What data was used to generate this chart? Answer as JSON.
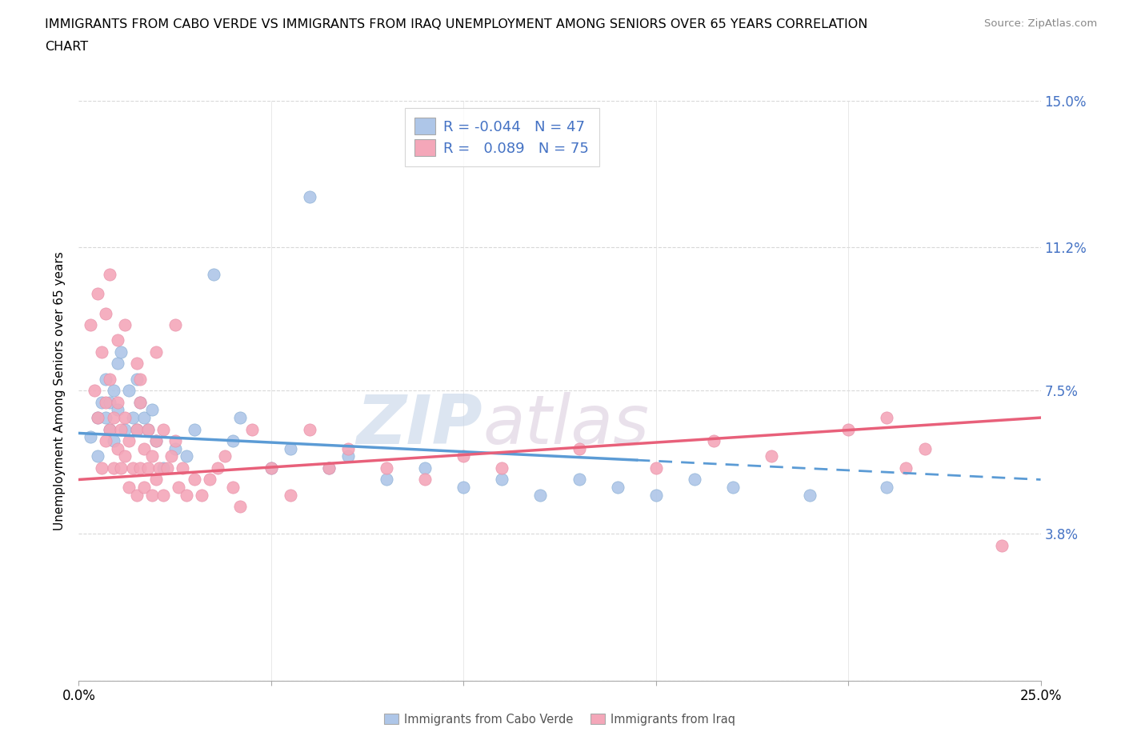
{
  "title_line1": "IMMIGRANTS FROM CABO VERDE VS IMMIGRANTS FROM IRAQ UNEMPLOYMENT AMONG SENIORS OVER 65 YEARS CORRELATION",
  "title_line2": "CHART",
  "source_text": "Source: ZipAtlas.com",
  "ylabel": "Unemployment Among Seniors over 65 years",
  "xlim": [
    0.0,
    0.25
  ],
  "ylim": [
    0.0,
    0.15
  ],
  "yticks": [
    0.0,
    0.038,
    0.075,
    0.112,
    0.15
  ],
  "ytick_labels": [
    "",
    "3.8%",
    "7.5%",
    "11.2%",
    "15.0%"
  ],
  "cabo_verde_color": "#aec6e8",
  "iraq_color": "#f4a7b9",
  "cabo_verde_line_color": "#5b9bd5",
  "iraq_line_color": "#e8607a",
  "cabo_verde_points": [
    [
      0.003,
      0.063
    ],
    [
      0.005,
      0.058
    ],
    [
      0.005,
      0.068
    ],
    [
      0.006,
      0.072
    ],
    [
      0.007,
      0.078
    ],
    [
      0.007,
      0.068
    ],
    [
      0.008,
      0.065
    ],
    [
      0.008,
      0.072
    ],
    [
      0.009,
      0.075
    ],
    [
      0.009,
      0.062
    ],
    [
      0.01,
      0.082
    ],
    [
      0.01,
      0.07
    ],
    [
      0.011,
      0.085
    ],
    [
      0.012,
      0.065
    ],
    [
      0.013,
      0.075
    ],
    [
      0.014,
      0.068
    ],
    [
      0.015,
      0.065
    ],
    [
      0.015,
      0.078
    ],
    [
      0.016,
      0.072
    ],
    [
      0.017,
      0.068
    ],
    [
      0.018,
      0.065
    ],
    [
      0.019,
      0.07
    ],
    [
      0.02,
      0.062
    ],
    [
      0.022,
      0.055
    ],
    [
      0.025,
      0.06
    ],
    [
      0.028,
      0.058
    ],
    [
      0.03,
      0.065
    ],
    [
      0.04,
      0.062
    ],
    [
      0.042,
      0.068
    ],
    [
      0.05,
      0.055
    ],
    [
      0.055,
      0.06
    ],
    [
      0.065,
      0.055
    ],
    [
      0.07,
      0.058
    ],
    [
      0.08,
      0.052
    ],
    [
      0.09,
      0.055
    ],
    [
      0.1,
      0.05
    ],
    [
      0.11,
      0.052
    ],
    [
      0.12,
      0.048
    ],
    [
      0.13,
      0.052
    ],
    [
      0.14,
      0.05
    ],
    [
      0.15,
      0.048
    ],
    [
      0.16,
      0.052
    ],
    [
      0.17,
      0.05
    ],
    [
      0.19,
      0.048
    ],
    [
      0.21,
      0.05
    ],
    [
      0.035,
      0.105
    ],
    [
      0.06,
      0.125
    ]
  ],
  "iraq_points": [
    [
      0.003,
      0.092
    ],
    [
      0.004,
      0.075
    ],
    [
      0.005,
      0.068
    ],
    [
      0.006,
      0.085
    ],
    [
      0.006,
      0.055
    ],
    [
      0.007,
      0.072
    ],
    [
      0.007,
      0.062
    ],
    [
      0.008,
      0.065
    ],
    [
      0.008,
      0.078
    ],
    [
      0.009,
      0.055
    ],
    [
      0.009,
      0.068
    ],
    [
      0.01,
      0.06
    ],
    [
      0.01,
      0.072
    ],
    [
      0.011,
      0.065
    ],
    [
      0.011,
      0.055
    ],
    [
      0.012,
      0.058
    ],
    [
      0.012,
      0.068
    ],
    [
      0.013,
      0.062
    ],
    [
      0.013,
      0.05
    ],
    [
      0.014,
      0.055
    ],
    [
      0.015,
      0.048
    ],
    [
      0.015,
      0.065
    ],
    [
      0.016,
      0.072
    ],
    [
      0.016,
      0.055
    ],
    [
      0.017,
      0.06
    ],
    [
      0.017,
      0.05
    ],
    [
      0.018,
      0.065
    ],
    [
      0.018,
      0.055
    ],
    [
      0.019,
      0.058
    ],
    [
      0.019,
      0.048
    ],
    [
      0.02,
      0.062
    ],
    [
      0.02,
      0.052
    ],
    [
      0.021,
      0.055
    ],
    [
      0.022,
      0.048
    ],
    [
      0.022,
      0.065
    ],
    [
      0.023,
      0.055
    ],
    [
      0.024,
      0.058
    ],
    [
      0.025,
      0.062
    ],
    [
      0.026,
      0.05
    ],
    [
      0.027,
      0.055
    ],
    [
      0.028,
      0.048
    ],
    [
      0.03,
      0.052
    ],
    [
      0.032,
      0.048
    ],
    [
      0.034,
      0.052
    ],
    [
      0.036,
      0.055
    ],
    [
      0.038,
      0.058
    ],
    [
      0.04,
      0.05
    ],
    [
      0.042,
      0.045
    ],
    [
      0.045,
      0.065
    ],
    [
      0.05,
      0.055
    ],
    [
      0.055,
      0.048
    ],
    [
      0.06,
      0.065
    ],
    [
      0.065,
      0.055
    ],
    [
      0.07,
      0.06
    ],
    [
      0.08,
      0.055
    ],
    [
      0.09,
      0.052
    ],
    [
      0.1,
      0.058
    ],
    [
      0.11,
      0.055
    ],
    [
      0.13,
      0.06
    ],
    [
      0.15,
      0.055
    ],
    [
      0.165,
      0.062
    ],
    [
      0.18,
      0.058
    ],
    [
      0.2,
      0.065
    ],
    [
      0.21,
      0.068
    ],
    [
      0.215,
      0.055
    ],
    [
      0.22,
      0.06
    ],
    [
      0.24,
      0.035
    ],
    [
      0.005,
      0.1
    ],
    [
      0.007,
      0.095
    ],
    [
      0.008,
      0.105
    ],
    [
      0.01,
      0.088
    ],
    [
      0.012,
      0.092
    ],
    [
      0.015,
      0.082
    ],
    [
      0.016,
      0.078
    ],
    [
      0.02,
      0.085
    ],
    [
      0.025,
      0.092
    ]
  ],
  "watermark_zip": "ZIP",
  "watermark_atlas": "atlas",
  "background_color": "#ffffff",
  "grid_color": "#c8c8c8"
}
